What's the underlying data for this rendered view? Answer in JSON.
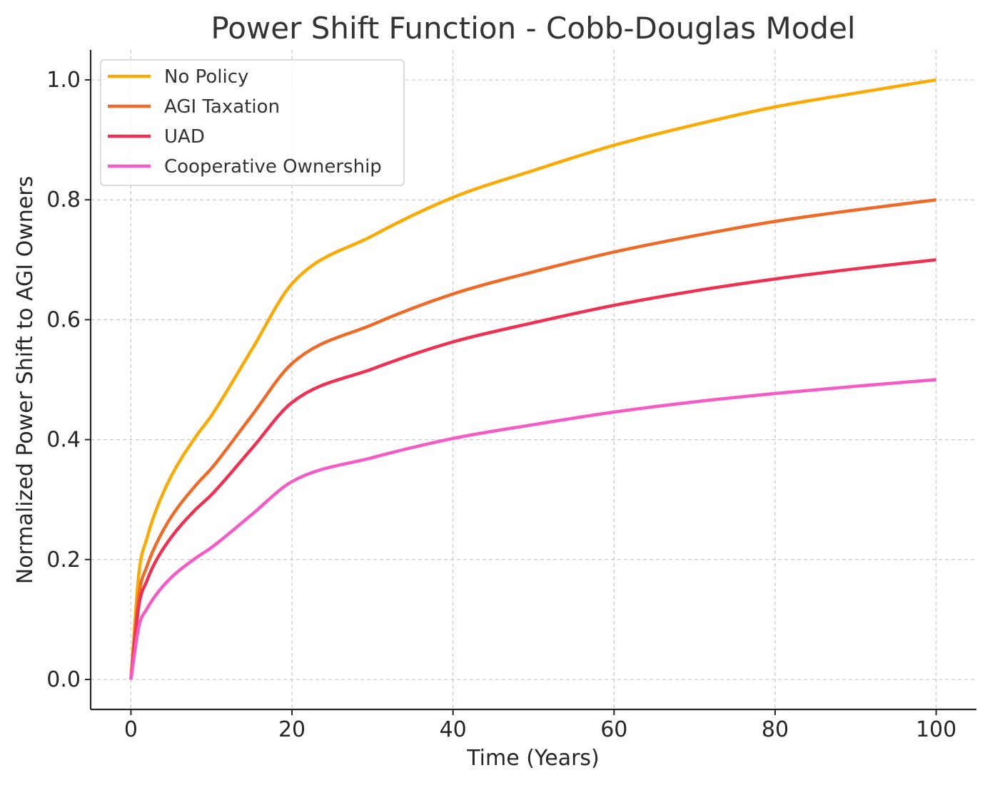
{
  "chart_data": {
    "type": "line",
    "title": "Power Shift Function - Cobb-Douglas Model",
    "xlabel": "Time (Years)",
    "ylabel": "Normalized Power Shift to AGI Owners",
    "xlim": [
      -5,
      105
    ],
    "ylim": [
      -0.05,
      1.05
    ],
    "xticks": [
      0,
      20,
      40,
      60,
      80,
      100
    ],
    "yticks": [
      0.0,
      0.2,
      0.4,
      0.6,
      0.8,
      1.0
    ],
    "xtick_labels": [
      "0",
      "20",
      "40",
      "60",
      "80",
      "100"
    ],
    "ytick_labels": [
      "0.0",
      "0.2",
      "0.4",
      "0.6",
      "0.8",
      "1.0"
    ],
    "grid": true,
    "legend_position": "top-left",
    "x": [
      0,
      1,
      2,
      3,
      5,
      8,
      10,
      15,
      20,
      30,
      40,
      50,
      60,
      70,
      80,
      90,
      100
    ],
    "series": [
      {
        "name": "No Policy",
        "color": "#F9AA05",
        "values": [
          0.0,
          0.178,
          0.236,
          0.278,
          0.339,
          0.404,
          0.44,
          0.55,
          0.66,
          0.74,
          0.804,
          0.849,
          0.891,
          0.925,
          0.955,
          0.978,
          1.0
        ]
      },
      {
        "name": "AGI Taxation",
        "color": "#EE6A28",
        "values": [
          0.0,
          0.142,
          0.189,
          0.222,
          0.271,
          0.323,
          0.352,
          0.44,
          0.527,
          0.592,
          0.643,
          0.68,
          0.713,
          0.74,
          0.764,
          0.783,
          0.8
        ]
      },
      {
        "name": "UAD",
        "color": "#EE3153",
        "values": [
          0.0,
          0.124,
          0.165,
          0.195,
          0.237,
          0.283,
          0.308,
          0.385,
          0.462,
          0.518,
          0.563,
          0.595,
          0.624,
          0.648,
          0.668,
          0.685,
          0.7
        ]
      },
      {
        "name": "Cooperative Ownership",
        "color": "#F55BC5",
        "values": [
          0.0,
          0.089,
          0.118,
          0.139,
          0.17,
          0.202,
          0.22,
          0.275,
          0.33,
          0.37,
          0.402,
          0.425,
          0.446,
          0.463,
          0.477,
          0.489,
          0.5
        ]
      }
    ]
  }
}
